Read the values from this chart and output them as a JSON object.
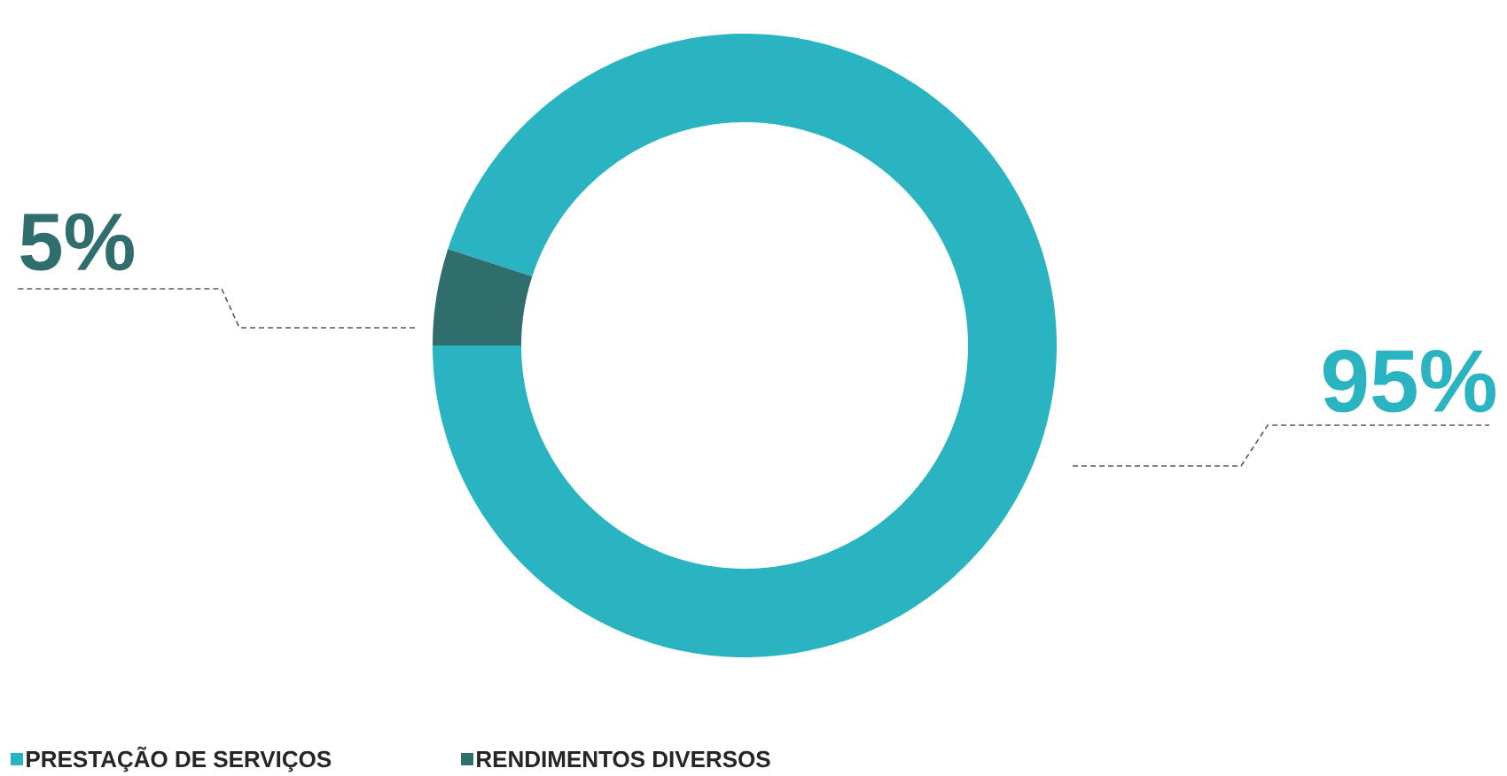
{
  "chart_data": {
    "type": "donut",
    "categories": [
      "PRESTAÇÃO DE SERVIÇOS",
      "RENDIMENTOS DIVERSOS"
    ],
    "values": [
      95,
      5
    ],
    "colors": [
      "#2ab3c0",
      "#2f6e6c"
    ],
    "value_labels": [
      "95%",
      "5%"
    ],
    "legend": "bottom left"
  }
}
